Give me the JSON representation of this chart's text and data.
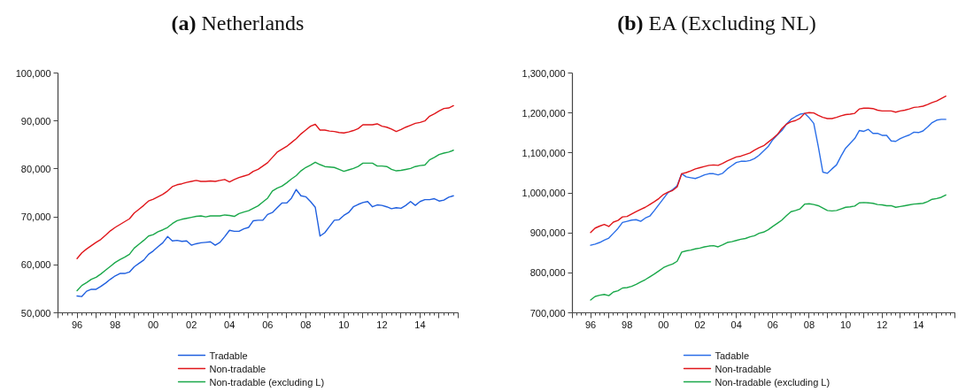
{
  "chart_data": [
    {
      "type": "line",
      "title": "(a) Netherlands",
      "legend": "bottom",
      "grid": false,
      "line_style": "solid",
      "x": [
        1996,
        1996.25,
        1996.5,
        1996.75,
        1997,
        1997.25,
        1997.5,
        1997.75,
        1998,
        1998.25,
        1998.5,
        1998.75,
        1999,
        1999.25,
        1999.5,
        1999.75,
        2000,
        2000.25,
        2000.5,
        2000.75,
        2001,
        2001.25,
        2001.5,
        2001.75,
        2002,
        2002.25,
        2002.5,
        2002.75,
        2003,
        2003.25,
        2003.5,
        2003.75,
        2004,
        2004.25,
        2004.5,
        2004.75,
        2005,
        2005.25,
        2005.5,
        2005.75,
        2006,
        2006.25,
        2006.5,
        2006.75,
        2007,
        2007.25,
        2007.5,
        2007.75,
        2008,
        2008.25,
        2008.5,
        2008.75,
        2009,
        2009.25,
        2009.5,
        2009.75,
        2010,
        2010.25,
        2010.5,
        2010.75,
        2011,
        2011.25,
        2011.5,
        2011.75,
        2012,
        2012.25,
        2012.5,
        2012.75,
        2013,
        2013.25,
        2013.5,
        2013.75,
        2014,
        2014.25,
        2014.5,
        2014.75,
        2015,
        2015.25,
        2015.5,
        2015.75
      ],
      "xlim": [
        1995,
        2016
      ],
      "xticks": [
        {
          "value": 1995,
          "label": null
        },
        {
          "value": 1996,
          "label": "96"
        },
        {
          "value": 1997,
          "label": null
        },
        {
          "value": 1998,
          "label": "98"
        },
        {
          "value": 1999,
          "label": null
        },
        {
          "value": 2000,
          "label": "00"
        },
        {
          "value": 2001,
          "label": null
        },
        {
          "value": 2002,
          "label": "02"
        },
        {
          "value": 2003,
          "label": null
        },
        {
          "value": 2004,
          "label": "04"
        },
        {
          "value": 2005,
          "label": null
        },
        {
          "value": 2006,
          "label": "06"
        },
        {
          "value": 2007,
          "label": null
        },
        {
          "value": 2008,
          "label": "08"
        },
        {
          "value": 2009,
          "label": null
        },
        {
          "value": 2010,
          "label": "10"
        },
        {
          "value": 2011,
          "label": null
        },
        {
          "value": 2012,
          "label": "12"
        },
        {
          "value": 2013,
          "label": null
        },
        {
          "value": 2014,
          "label": "14"
        },
        {
          "value": 2015,
          "label": null
        },
        {
          "value": 2016,
          "label": null
        }
      ],
      "ylim": [
        50000,
        100000
      ],
      "yticks": [
        {
          "value": 50000,
          "label": "50,000"
        },
        {
          "value": 60000,
          "label": "60,000"
        },
        {
          "value": 70000,
          "label": "70,000"
        },
        {
          "value": 80000,
          "label": "80,000"
        },
        {
          "value": 90000,
          "label": "90,000"
        },
        {
          "value": 100000,
          "label": "100,000"
        }
      ],
      "series": [
        {
          "name": "Tradable",
          "color": "#1f5fdf",
          "values": [
            53500,
            53400,
            54500,
            54900,
            54900,
            55500,
            56200,
            57000,
            57700,
            58200,
            58200,
            58500,
            59600,
            60300,
            61000,
            62200,
            62900,
            63800,
            64600,
            65900,
            65000,
            65100,
            64900,
            65000,
            64100,
            64400,
            64600,
            64700,
            64800,
            64100,
            64700,
            65900,
            67200,
            67000,
            67000,
            67500,
            67800,
            69200,
            69300,
            69300,
            70500,
            70900,
            71900,
            72900,
            72900,
            73900,
            75700,
            74400,
            74200,
            73200,
            72000,
            66000,
            66700,
            68000,
            69300,
            69400,
            70300,
            70900,
            72100,
            72600,
            73000,
            73200,
            72100,
            72500,
            72400,
            72100,
            71700,
            71900,
            71800,
            72400,
            73200,
            72400,
            73200,
            73600,
            73600,
            73800,
            73300,
            73500,
            74100,
            74400
          ]
        },
        {
          "name": "Non-tradable",
          "color": "#e0161b",
          "values": [
            61300,
            62500,
            63300,
            64000,
            64700,
            65300,
            66200,
            67100,
            67800,
            68400,
            69000,
            69600,
            70800,
            71600,
            72400,
            73300,
            73700,
            74200,
            74700,
            75400,
            76300,
            76700,
            76900,
            77200,
            77400,
            77600,
            77400,
            77400,
            77500,
            77400,
            77600,
            77800,
            77300,
            77800,
            78200,
            78500,
            78800,
            79500,
            79900,
            80600,
            81300,
            82400,
            83500,
            84100,
            84700,
            85500,
            86300,
            87300,
            88100,
            88900,
            89300,
            88100,
            88100,
            87900,
            87800,
            87600,
            87500,
            87700,
            88000,
            88400,
            89200,
            89200,
            89200,
            89400,
            88900,
            88700,
            88300,
            87800,
            88200,
            88700,
            89100,
            89500,
            89700,
            90000,
            91000,
            91500,
            92100,
            92600,
            92700,
            93200
          ]
        },
        {
          "name": "Non-tradable (excluding L)",
          "color": "#1aa84a",
          "values": [
            54600,
            55700,
            56300,
            57000,
            57400,
            58100,
            58900,
            59700,
            60500,
            61100,
            61600,
            62200,
            63500,
            64300,
            65100,
            66000,
            66300,
            66900,
            67300,
            67800,
            68600,
            69200,
            69500,
            69700,
            69900,
            70100,
            70200,
            70000,
            70200,
            70200,
            70200,
            70400,
            70300,
            70100,
            70700,
            71000,
            71300,
            71800,
            72300,
            73100,
            73900,
            75400,
            76000,
            76400,
            77100,
            77900,
            78600,
            79600,
            80300,
            80800,
            81400,
            80900,
            80500,
            80400,
            80300,
            79900,
            79500,
            79800,
            80100,
            80500,
            81200,
            81200,
            81200,
            80600,
            80600,
            80500,
            79900,
            79600,
            79700,
            79900,
            80100,
            80500,
            80700,
            80800,
            81900,
            82400,
            83000,
            83300,
            83500,
            83900
          ]
        }
      ]
    },
    {
      "type": "line",
      "title": "(b) EA (Excluding NL)",
      "legend": "bottom",
      "grid": false,
      "line_style": "solid",
      "x": [
        1996,
        1996.25,
        1996.5,
        1996.75,
        1997,
        1997.25,
        1997.5,
        1997.75,
        1998,
        1998.25,
        1998.5,
        1998.75,
        1999,
        1999.25,
        1999.5,
        1999.75,
        2000,
        2000.25,
        2000.5,
        2000.75,
        2001,
        2001.25,
        2001.5,
        2001.75,
        2002,
        2002.25,
        2002.5,
        2002.75,
        2003,
        2003.25,
        2003.5,
        2003.75,
        2004,
        2004.25,
        2004.5,
        2004.75,
        2005,
        2005.25,
        2005.5,
        2005.75,
        2006,
        2006.25,
        2006.5,
        2006.75,
        2007,
        2007.25,
        2007.5,
        2007.75,
        2008,
        2008.25,
        2008.5,
        2008.75,
        2009,
        2009.25,
        2009.5,
        2009.75,
        2010,
        2010.25,
        2010.5,
        2010.75,
        2011,
        2011.25,
        2011.5,
        2011.75,
        2012,
        2012.25,
        2012.5,
        2012.75,
        2013,
        2013.25,
        2013.5,
        2013.75,
        2014,
        2014.25,
        2014.5,
        2014.75,
        2015,
        2015.25,
        2015.5
      ],
      "xlim": [
        1995,
        2016
      ],
      "xticks": [
        {
          "value": 1995,
          "label": null
        },
        {
          "value": 1996,
          "label": "96"
        },
        {
          "value": 1997,
          "label": null
        },
        {
          "value": 1998,
          "label": "98"
        },
        {
          "value": 1999,
          "label": null
        },
        {
          "value": 2000,
          "label": "00"
        },
        {
          "value": 2001,
          "label": null
        },
        {
          "value": 2002,
          "label": "02"
        },
        {
          "value": 2003,
          "label": null
        },
        {
          "value": 2004,
          "label": "04"
        },
        {
          "value": 2005,
          "label": null
        },
        {
          "value": 2006,
          "label": "06"
        },
        {
          "value": 2007,
          "label": null
        },
        {
          "value": 2008,
          "label": "08"
        },
        {
          "value": 2009,
          "label": null
        },
        {
          "value": 2010,
          "label": "10"
        },
        {
          "value": 2011,
          "label": null
        },
        {
          "value": 2012,
          "label": "12"
        },
        {
          "value": 2013,
          "label": null
        },
        {
          "value": 2014,
          "label": "14"
        },
        {
          "value": 2015,
          "label": null
        },
        {
          "value": 2016,
          "label": null
        }
      ],
      "ylim": [
        700000,
        1300000
      ],
      "yticks": [
        {
          "value": 700000,
          "label": "700,000"
        },
        {
          "value": 800000,
          "label": "800,000"
        },
        {
          "value": 900000,
          "label": "900,000"
        },
        {
          "value": 1000000,
          "label": "1,000,000"
        },
        {
          "value": 1100000,
          "label": "1,100,000"
        },
        {
          "value": 1200000,
          "label": "1,200,000"
        },
        {
          "value": 1300000,
          "label": "1,300,000"
        }
      ],
      "series": [
        {
          "name": "Tadable",
          "color": "#2a6ee8",
          "values": [
            869000,
            872000,
            876000,
            882000,
            887000,
            899000,
            911000,
            926000,
            929000,
            932000,
            933000,
            929000,
            937000,
            942000,
            956000,
            971000,
            986000,
            1001000,
            1008000,
            1018000,
            1048000,
            1040000,
            1038000,
            1036000,
            1040000,
            1045000,
            1048000,
            1048000,
            1045000,
            1049000,
            1060000,
            1068000,
            1076000,
            1079000,
            1079000,
            1081000,
            1086000,
            1094000,
            1105000,
            1116000,
            1133000,
            1145000,
            1156000,
            1172000,
            1184000,
            1191000,
            1197000,
            1199000,
            1188000,
            1174000,
            1116000,
            1052000,
            1049000,
            1060000,
            1070000,
            1092000,
            1112000,
            1124000,
            1136000,
            1156000,
            1154000,
            1159000,
            1149000,
            1149000,
            1144000,
            1144000,
            1130000,
            1129000,
            1136000,
            1141000,
            1145000,
            1152000,
            1151000,
            1155000,
            1165000,
            1176000,
            1182000,
            1184000,
            1184000
          ]
        },
        {
          "name": "Non-tradable",
          "color": "#e0161b",
          "values": [
            901000,
            912000,
            917000,
            921000,
            916000,
            927000,
            931000,
            940000,
            941000,
            947000,
            953000,
            959000,
            964000,
            971000,
            978000,
            986000,
            996000,
            1002000,
            1006000,
            1015000,
            1048000,
            1051000,
            1055000,
            1060000,
            1063000,
            1066000,
            1069000,
            1070000,
            1069000,
            1074000,
            1080000,
            1085000,
            1090000,
            1092000,
            1096000,
            1100000,
            1107000,
            1113000,
            1118000,
            1127000,
            1136000,
            1146000,
            1161000,
            1172000,
            1178000,
            1181000,
            1187000,
            1199000,
            1201000,
            1200000,
            1194000,
            1189000,
            1186000,
            1186000,
            1189000,
            1193000,
            1196000,
            1197000,
            1199000,
            1210000,
            1212000,
            1212000,
            1211000,
            1207000,
            1205000,
            1205000,
            1205000,
            1202000,
            1205000,
            1207000,
            1210000,
            1214000,
            1215000,
            1217000,
            1221000,
            1226000,
            1230000,
            1236000,
            1242000
          ]
        },
        {
          "name": "Non-tradable (excluding L)",
          "color": "#1aa84a",
          "values": [
            732000,
            741000,
            744000,
            746000,
            743000,
            752000,
            755000,
            762000,
            763000,
            766000,
            771000,
            777000,
            783000,
            790000,
            797000,
            805000,
            813000,
            818000,
            822000,
            829000,
            852000,
            855000,
            857000,
            860000,
            862000,
            865000,
            867000,
            868000,
            865000,
            870000,
            876000,
            878000,
            881000,
            884000,
            886000,
            890000,
            893000,
            899000,
            902000,
            908000,
            916000,
            924000,
            932000,
            943000,
            953000,
            956000,
            960000,
            972000,
            973000,
            971000,
            968000,
            962000,
            956000,
            955000,
            956000,
            960000,
            964000,
            965000,
            967000,
            975000,
            976000,
            975000,
            974000,
            971000,
            970000,
            968000,
            968000,
            964000,
            966000,
            968000,
            970000,
            972000,
            973000,
            974000,
            978000,
            984000,
            986000,
            989000,
            995000
          ]
        }
      ]
    }
  ]
}
